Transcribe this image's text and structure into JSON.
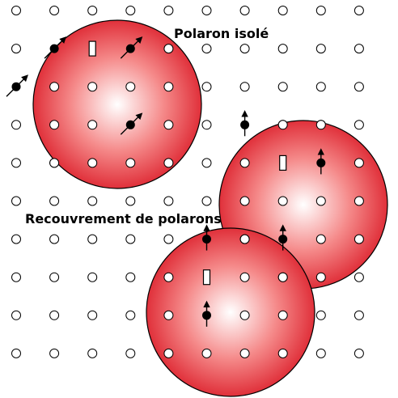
{
  "labels": {
    "isolated": "Polaron isolé",
    "overlap": "Recouvrement de polarons"
  },
  "colors": {
    "polaron_center": "#ffffff",
    "polaron_mid": "#f58a8a",
    "polaron_edge": "#e0303a",
    "site_fill": "#ffffff",
    "site_stroke": "#000000",
    "spin": "#000000"
  },
  "lattice": {
    "columns": 10,
    "rows": 10
  },
  "polarons": [
    {
      "name": "isolated",
      "spin_style": "diagonal",
      "vacancy_site": [
        2,
        1
      ],
      "spin_sites": [
        [
          1,
          1
        ],
        [
          3,
          1
        ],
        [
          0,
          2
        ],
        [
          3,
          3
        ]
      ]
    },
    {
      "name": "overlap-right",
      "spin_style": "vertical",
      "vacancy_site": [
        7,
        4
      ],
      "spin_sites": [
        [
          6,
          3
        ],
        [
          8,
          4
        ],
        [
          7,
          6
        ]
      ]
    },
    {
      "name": "overlap-bottom",
      "spin_style": "vertical",
      "vacancy_site": [
        5,
        7
      ],
      "spin_sites": [
        [
          5,
          6
        ],
        [
          5,
          8
        ]
      ]
    }
  ]
}
